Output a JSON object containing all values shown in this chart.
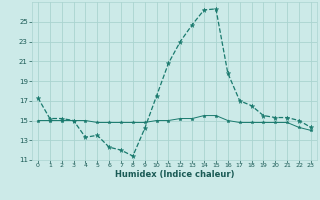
{
  "xlabel": "Humidex (Indice chaleur)",
  "bg_color": "#cceae8",
  "line_color": "#1a7a6e",
  "grid_color": "#aad4d0",
  "x_upper": [
    0,
    1,
    2,
    3,
    4,
    5,
    6,
    7,
    8,
    9,
    10,
    11,
    12,
    13,
    14,
    15,
    16,
    17,
    18,
    19,
    20,
    21,
    22,
    23
  ],
  "y_upper": [
    17.3,
    15.2,
    15.2,
    15.0,
    13.3,
    13.5,
    12.3,
    12.0,
    11.4,
    14.2,
    17.5,
    20.8,
    23.0,
    24.7,
    26.2,
    26.3,
    19.8,
    17.0,
    16.5,
    15.5,
    15.3,
    15.3,
    15.0,
    14.3
  ],
  "x_lower": [
    0,
    1,
    2,
    3,
    4,
    5,
    6,
    7,
    8,
    9,
    10,
    11,
    12,
    13,
    14,
    15,
    16,
    17,
    18,
    19,
    20,
    21,
    22,
    23
  ],
  "y_lower": [
    15.0,
    15.0,
    15.0,
    15.0,
    15.0,
    14.8,
    14.8,
    14.8,
    14.8,
    14.8,
    15.0,
    15.0,
    15.2,
    15.2,
    15.5,
    15.5,
    15.0,
    14.8,
    14.8,
    14.8,
    14.8,
    14.8,
    14.3,
    14.0
  ],
  "ylim": [
    11,
    27
  ],
  "xlim": [
    -0.5,
    23.5
  ],
  "yticks": [
    11,
    13,
    15,
    17,
    19,
    21,
    23,
    25
  ],
  "xticks": [
    0,
    1,
    2,
    3,
    4,
    5,
    6,
    7,
    8,
    9,
    10,
    11,
    12,
    13,
    14,
    15,
    16,
    17,
    18,
    19,
    20,
    21,
    22,
    23
  ],
  "xtick_labels": [
    "0",
    "1",
    "2",
    "3",
    "4",
    "5",
    "6",
    "7",
    "8",
    "9",
    "10",
    "11",
    "12",
    "13",
    "14",
    "15",
    "16",
    "17",
    "18",
    "19",
    "20",
    "21",
    "22",
    "23"
  ]
}
